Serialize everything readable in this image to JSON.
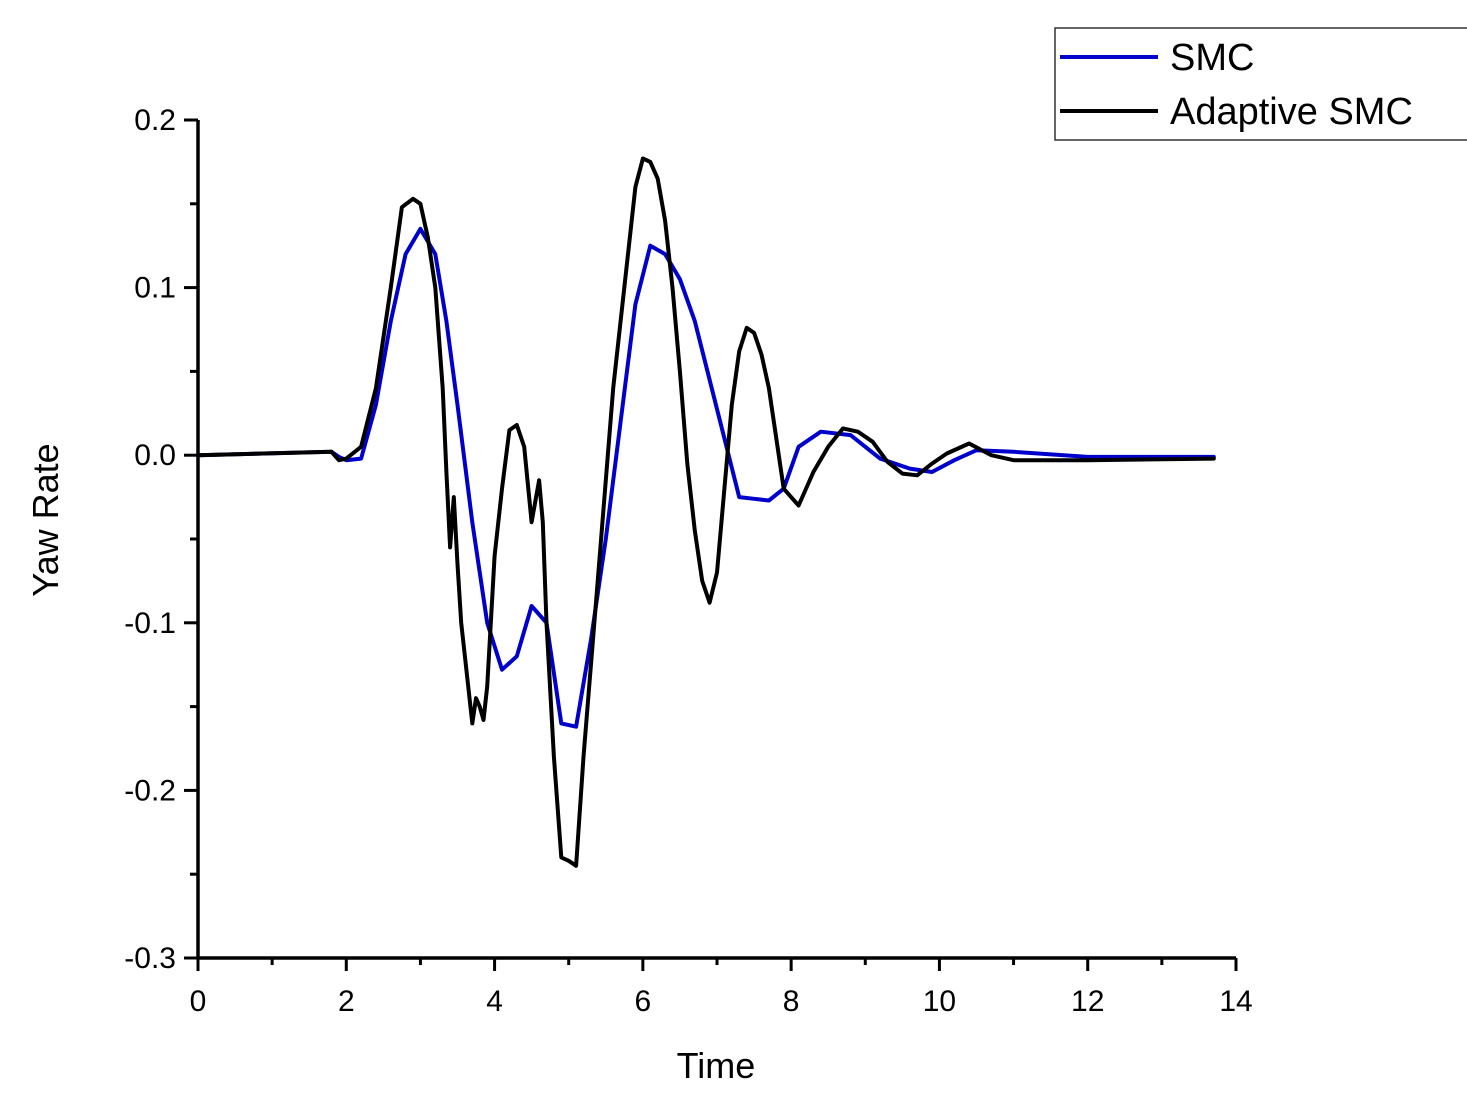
{
  "chart_data": {
    "type": "line",
    "title": "",
    "xlabel": "Time",
    "ylabel": "Yaw Rate",
    "xlim": [
      0,
      14
    ],
    "ylim": [
      -0.3,
      0.2
    ],
    "x_ticks": [
      "0",
      "2",
      "4",
      "6",
      "8",
      "10",
      "12",
      "14"
    ],
    "y_ticks": [
      "-0.3",
      "-0.2",
      "-0.1",
      "0.0",
      "0.1",
      "0.2"
    ],
    "grid": false,
    "legend_position": "top-right",
    "series": [
      {
        "name": "SMC",
        "color": "#0000cc",
        "x": [
          0,
          1.8,
          1.9,
          2.0,
          2.2,
          2.4,
          2.6,
          2.8,
          3.0,
          3.2,
          3.35,
          3.5,
          3.7,
          3.9,
          4.1,
          4.3,
          4.5,
          4.7,
          4.9,
          5.1,
          5.3,
          5.5,
          5.7,
          5.9,
          6.1,
          6.3,
          6.5,
          6.7,
          6.9,
          7.1,
          7.3,
          7.5,
          7.7,
          7.9,
          8.1,
          8.4,
          8.8,
          9.2,
          9.6,
          9.9,
          10.2,
          10.5,
          11.0,
          12.0,
          13.7
        ],
        "y": [
          0,
          0.002,
          -0.001,
          -0.003,
          -0.002,
          0.03,
          0.08,
          0.12,
          0.135,
          0.12,
          0.08,
          0.03,
          -0.04,
          -0.1,
          -0.128,
          -0.12,
          -0.09,
          -0.1,
          -0.16,
          -0.162,
          -0.11,
          -0.05,
          0.02,
          0.09,
          0.125,
          0.12,
          0.105,
          0.08,
          0.045,
          0.01,
          -0.025,
          -0.026,
          -0.027,
          -0.02,
          0.005,
          0.014,
          0.012,
          -0.002,
          -0.008,
          -0.01,
          -0.003,
          0.003,
          0.002,
          -0.001,
          -0.001
        ]
      },
      {
        "name": "Adaptive SMC",
        "color": "#000000",
        "x": [
          0,
          1.8,
          1.9,
          2.0,
          2.2,
          2.4,
          2.6,
          2.75,
          2.9,
          3.0,
          3.1,
          3.2,
          3.3,
          3.35,
          3.4,
          3.45,
          3.5,
          3.55,
          3.6,
          3.7,
          3.75,
          3.8,
          3.85,
          3.9,
          4.0,
          4.1,
          4.2,
          4.3,
          4.4,
          4.5,
          4.6,
          4.65,
          4.7,
          4.8,
          4.9,
          5.0,
          5.1,
          5.2,
          5.4,
          5.6,
          5.8,
          5.9,
          6.0,
          6.1,
          6.2,
          6.3,
          6.4,
          6.5,
          6.6,
          6.7,
          6.8,
          6.9,
          7.0,
          7.1,
          7.2,
          7.3,
          7.4,
          7.5,
          7.6,
          7.7,
          7.8,
          7.9,
          8.0,
          8.1,
          8.3,
          8.5,
          8.7,
          8.9,
          9.1,
          9.3,
          9.5,
          9.7,
          9.9,
          10.1,
          10.4,
          10.7,
          11.0,
          12.0,
          13.7
        ],
        "y": [
          0,
          0.002,
          -0.003,
          -0.002,
          0.005,
          0.04,
          0.1,
          0.148,
          0.153,
          0.15,
          0.13,
          0.1,
          0.04,
          -0.01,
          -0.055,
          -0.025,
          -0.065,
          -0.1,
          -0.12,
          -0.16,
          -0.145,
          -0.15,
          -0.158,
          -0.138,
          -0.06,
          -0.02,
          0.015,
          0.018,
          0.005,
          -0.04,
          -0.015,
          -0.04,
          -0.1,
          -0.18,
          -0.24,
          -0.242,
          -0.245,
          -0.18,
          -0.07,
          0.04,
          0.12,
          0.16,
          0.177,
          0.175,
          0.165,
          0.14,
          0.1,
          0.05,
          -0.005,
          -0.045,
          -0.075,
          -0.088,
          -0.07,
          -0.02,
          0.03,
          0.062,
          0.076,
          0.073,
          0.06,
          0.04,
          0.01,
          -0.02,
          -0.025,
          -0.03,
          -0.01,
          0.005,
          0.016,
          0.014,
          0.008,
          -0.004,
          -0.011,
          -0.012,
          -0.005,
          0.001,
          0.007,
          0.0,
          -0.003,
          -0.003,
          -0.002
        ]
      }
    ]
  }
}
